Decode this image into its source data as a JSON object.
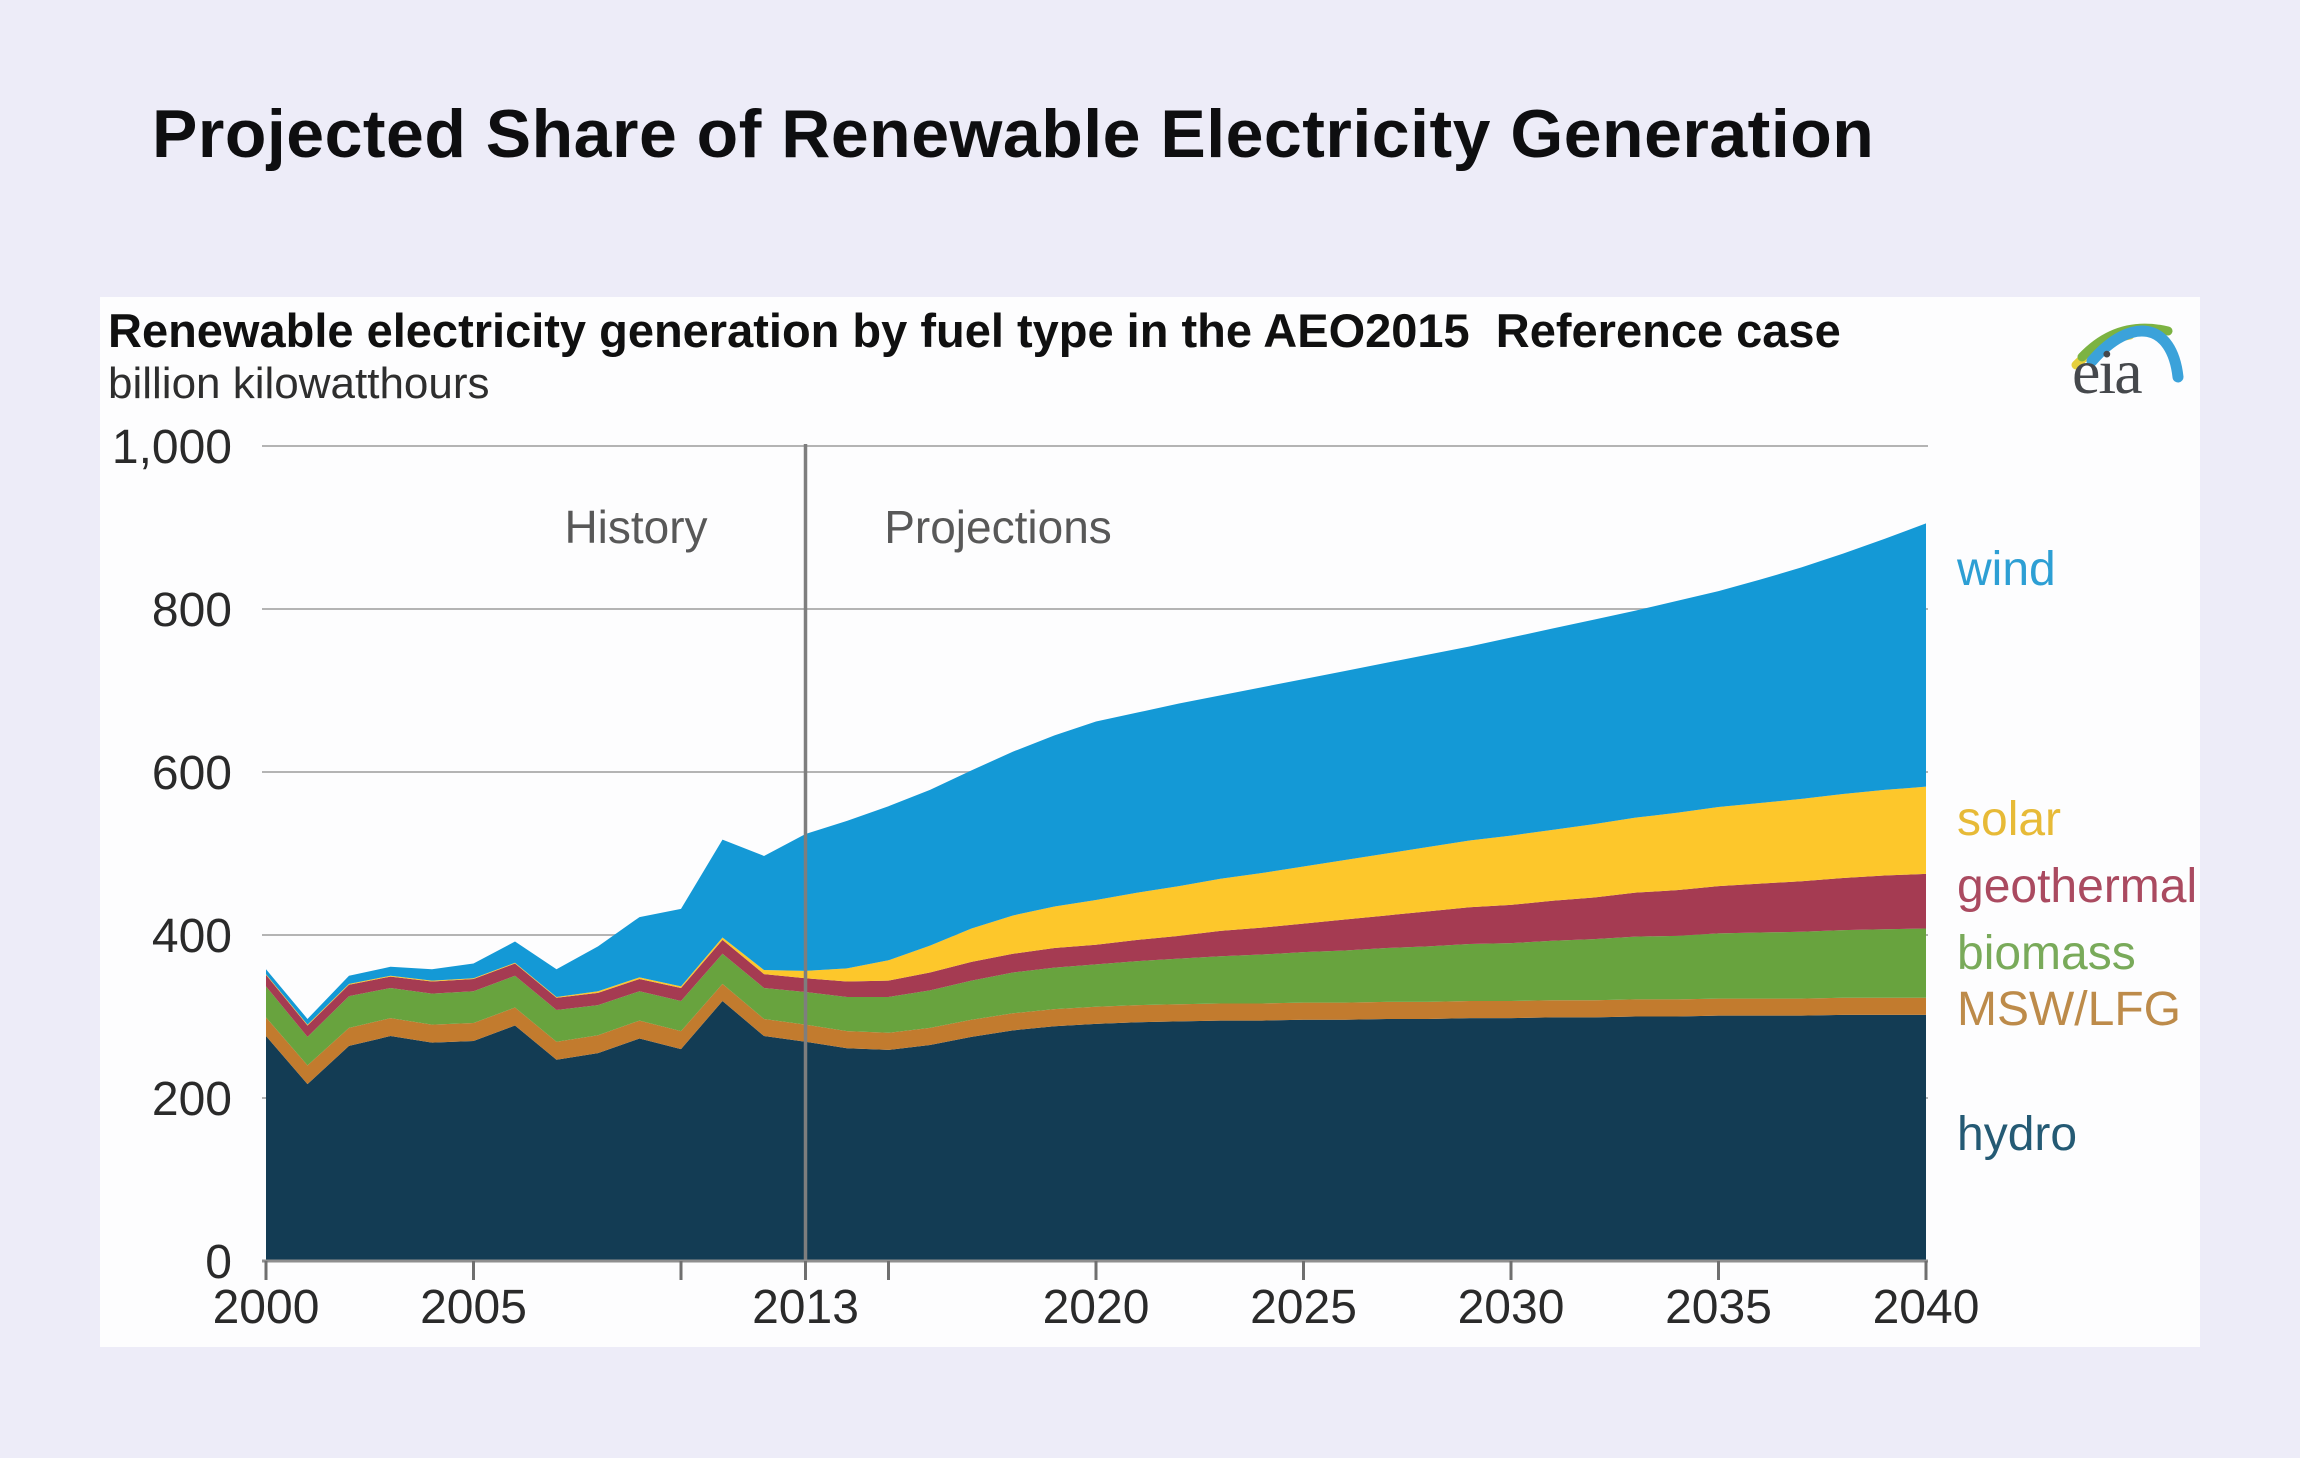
{
  "page": {
    "background": "#edecf8",
    "title": "Projected Share of Renewable Electricity Generation"
  },
  "chart": {
    "title": "Renewable electricity generation by fuel type in the AEO2015  Reference case",
    "subtitle": "billion kilowatthours",
    "logo": {
      "text": "eia"
    },
    "annotations": {
      "history": "History",
      "projections": "Projections"
    },
    "chart_data": {
      "type": "area",
      "stacked": true,
      "title": "Renewable electricity generation by fuel type in the AEO2015 Reference case",
      "ylabel": "billion kilowatthours",
      "ylim": [
        0,
        1000
      ],
      "xlim": [
        2000,
        2040
      ],
      "grid": true,
      "legend_position": "right",
      "divider_year": 2013,
      "years": [
        2000,
        2001,
        2002,
        2003,
        2004,
        2005,
        2006,
        2007,
        2008,
        2009,
        2010,
        2011,
        2012,
        2013,
        2014,
        2015,
        2016,
        2017,
        2018,
        2019,
        2020,
        2021,
        2022,
        2023,
        2024,
        2025,
        2026,
        2027,
        2028,
        2029,
        2030,
        2031,
        2032,
        2033,
        2034,
        2035,
        2036,
        2037,
        2038,
        2039,
        2040
      ],
      "yticks": [
        {
          "value": 0,
          "label": "0"
        },
        {
          "value": 200,
          "label": "200"
        },
        {
          "value": 400,
          "label": "400"
        },
        {
          "value": 600,
          "label": "600"
        },
        {
          "value": 800,
          "label": "800"
        },
        {
          "value": 1000,
          "label": "1,000"
        }
      ],
      "xticks": [
        {
          "year": 2000,
          "label": "2000"
        },
        {
          "year": 2005,
          "label": "2005"
        },
        {
          "year": 2010,
          "label": ""
        },
        {
          "year": 2013,
          "label": "2013"
        },
        {
          "year": 2015,
          "label": ""
        },
        {
          "year": 2020,
          "label": "2020"
        },
        {
          "year": 2025,
          "label": "2025"
        },
        {
          "year": 2030,
          "label": "2030"
        },
        {
          "year": 2035,
          "label": "2035"
        },
        {
          "year": 2040,
          "label": "2040"
        }
      ],
      "series": [
        {
          "name": "hydro",
          "label": "hydro",
          "color": "#133c54",
          "legend_color": "#245a74",
          "values": [
            276,
            217,
            264,
            276,
            268,
            270,
            289,
            247,
            255,
            273,
            260,
            319,
            276,
            269,
            261,
            259,
            265,
            275,
            283,
            288,
            291,
            293,
            294,
            295,
            295,
            296,
            296,
            297,
            297,
            298,
            298,
            299,
            299,
            300,
            300,
            301,
            301,
            301,
            302,
            302,
            302
          ]
        },
        {
          "name": "msw_lfg",
          "label": "MSW/LFG",
          "color": "#c27b2e",
          "legend_color": "#bd8b4a",
          "values": [
            23,
            23,
            22,
            22,
            22,
            22,
            22,
            22,
            22,
            22,
            22,
            21,
            21,
            21,
            21,
            21,
            21,
            21,
            21,
            21,
            21,
            21,
            21,
            21,
            21,
            21,
            21,
            21,
            21,
            21,
            21,
            21,
            21,
            21,
            21,
            21,
            21,
            21,
            21,
            21,
            21
          ]
        },
        {
          "name": "biomass",
          "label": "biomass",
          "color": "#68a33e",
          "legend_color": "#79aa5a",
          "values": [
            38,
            35,
            39,
            37,
            38,
            39,
            39,
            39,
            37,
            36,
            37,
            37,
            38,
            40,
            42,
            44,
            46,
            48,
            50,
            51,
            52,
            54,
            56,
            58,
            60,
            62,
            64,
            66,
            68,
            70,
            71,
            73,
            75,
            77,
            78,
            80,
            81,
            82,
            83,
            84,
            85
          ]
        },
        {
          "name": "geothermal",
          "label": "geothermal",
          "color": "#a53b52",
          "legend_color": "#aa4a60",
          "values": [
            14,
            14,
            14,
            14,
            15,
            15,
            15,
            15,
            15,
            15,
            16,
            17,
            17,
            17,
            19,
            20,
            22,
            23,
            23,
            24,
            24,
            26,
            28,
            31,
            33,
            35,
            38,
            40,
            43,
            45,
            47,
            49,
            51,
            54,
            56,
            58,
            60,
            62,
            64,
            66,
            67
          ]
        },
        {
          "name": "solar",
          "label": "solar",
          "color": "#fdc72b",
          "legend_color": "#e7ba37",
          "values": [
            1,
            1,
            1,
            1,
            1,
            1,
            1,
            1,
            2,
            2,
            2,
            3,
            5,
            9,
            16,
            25,
            33,
            41,
            47,
            51,
            55,
            58,
            61,
            64,
            67,
            70,
            73,
            76,
            79,
            82,
            85,
            87,
            90,
            92,
            95,
            97,
            99,
            101,
            103,
            105,
            107
          ]
        },
        {
          "name": "wind",
          "label": "wind",
          "color": "#1499d6",
          "legend_color": "#2d9fd4",
          "values": [
            6,
            7,
            10,
            11,
            14,
            18,
            26,
            34,
            55,
            74,
            95,
            120,
            140,
            168,
            181,
            189,
            191,
            194,
            201,
            210,
            219,
            221,
            224,
            225,
            228,
            230,
            232,
            234,
            236,
            238,
            243,
            247,
            251,
            254,
            260,
            265,
            274,
            284,
            295,
            308,
            323
          ]
        }
      ]
    }
  }
}
